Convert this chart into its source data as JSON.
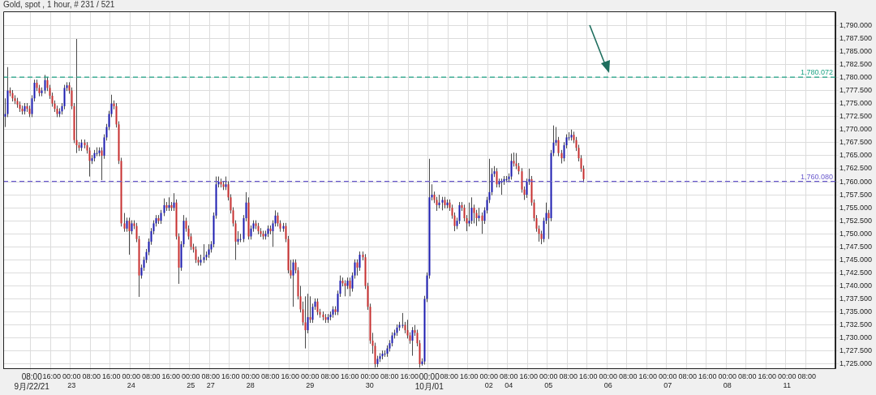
{
  "chart_data": {
    "type": "candlestick",
    "title": "Gold, spot , 1 hour, # 231 / 521",
    "categories": [
      null,
      null,
      null,
      null,
      null,
      null,
      null,
      null,
      null,
      null,
      null,
      "08:00\n9月/22/21",
      null,
      null,
      null,
      null,
      null,
      null,
      null,
      "16:00",
      null,
      null,
      null,
      null,
      null,
      null,
      null,
      "00:00\n23",
      null,
      null,
      null,
      null,
      null,
      null,
      null,
      "08:00",
      null,
      null,
      null,
      null,
      null,
      null,
      null,
      "16:00",
      null,
      null,
      null,
      null,
      null,
      null,
      null,
      "00:00\n24",
      null,
      null,
      null,
      null,
      null,
      null,
      null,
      "08:00",
      null,
      null,
      null,
      null,
      null,
      null,
      null,
      "16:00",
      null,
      null,
      null,
      null,
      null,
      null,
      null,
      "00:00\n25",
      null,
      null,
      null,
      null,
      null,
      null,
      null,
      "08:00\n27",
      null,
      null,
      null,
      null,
      null,
      null,
      null,
      "16:00",
      null,
      null,
      null,
      null,
      null,
      null,
      null,
      "00:00\n28",
      null,
      null,
      null,
      null,
      null,
      null,
      null,
      "08:00",
      null,
      null,
      null,
      null,
      null,
      null,
      null,
      "16:00",
      null,
      null,
      null,
      null,
      null,
      null,
      null,
      "00:00\n29",
      null,
      null,
      null,
      null,
      null,
      null,
      null,
      "08:00",
      null,
      null,
      null,
      null,
      null,
      null,
      null,
      "16:00",
      null,
      null,
      null,
      null,
      null,
      null,
      null,
      "00:00\n30",
      null,
      null,
      null,
      null,
      null,
      null,
      null,
      "08:00",
      null,
      null,
      null,
      null,
      null,
      null,
      null,
      "16:00",
      null,
      null,
      null,
      null,
      null,
      null,
      null,
      "00:00\n10月/01",
      null,
      null,
      null,
      null,
      null,
      null,
      null,
      "08:00",
      null,
      null,
      null,
      null,
      null,
      null,
      null,
      "16:00",
      null,
      null,
      null,
      null,
      null,
      null,
      null,
      "00:00\n02",
      null,
      null,
      null,
      null,
      null,
      null,
      null,
      "08:00\n04",
      null,
      null,
      null,
      null,
      null,
      null,
      null,
      "16:00",
      null,
      null,
      null,
      null,
      null,
      null,
      null,
      "00:00\n05",
      null,
      null,
      null,
      null,
      null,
      null,
      null,
      "08:00",
      null,
      null,
      null,
      null,
      null,
      null,
      null,
      "16:00",
      null,
      null,
      null,
      null,
      null,
      null,
      null,
      "00:00\n06",
      null,
      null,
      null,
      null,
      null,
      null,
      null,
      "08:00",
      null,
      null,
      null,
      null,
      null,
      null,
      null,
      "16:00",
      null,
      null,
      null,
      null,
      null,
      null,
      null,
      "00:00\n07",
      null,
      null,
      null,
      null,
      null,
      null,
      null,
      "08:00",
      null,
      null,
      null,
      null,
      null,
      null,
      null,
      "16:00",
      null,
      null,
      null,
      null,
      null,
      null,
      null,
      "00:00\n08",
      null,
      null,
      null,
      null,
      null,
      null,
      null,
      "08:00",
      null,
      null,
      null,
      null,
      null,
      null,
      null,
      "16:00",
      null,
      null,
      null,
      null,
      null,
      null,
      null,
      "00:00\n11",
      null,
      null,
      null,
      null,
      null,
      null,
      null,
      "08:00",
      null,
      null,
      null,
      null,
      null,
      null,
      null,
      null,
      null,
      null,
      null
    ],
    "ohlc": [
      [
        1772.5,
        1776.0,
        1770.5,
        1773.0
      ],
      [
        1773.0,
        1782.0,
        1772.4,
        1777.5
      ],
      [
        1777.5,
        1778.1,
        1776.4,
        1777.0
      ],
      [
        1777.0,
        1777.6,
        1775.4,
        1776.0
      ],
      [
        1776.0,
        1776.6,
        1774.9,
        1775.5
      ],
      [
        1775.5,
        1776.1,
        1774.2,
        1774.8
      ],
      [
        1774.8,
        1775.4,
        1773.4,
        1774.0
      ],
      [
        1774.0,
        1774.6,
        1772.9,
        1773.5
      ],
      [
        1773.5,
        1775.1,
        1772.9,
        1774.5
      ],
      [
        1774.5,
        1775.1,
        1773.4,
        1774.0
      ],
      [
        1774.0,
        1774.6,
        1772.4,
        1773.0
      ],
      [
        1773.0,
        1776.6,
        1772.4,
        1776.0
      ],
      [
        1776.0,
        1779.6,
        1775.4,
        1779.0
      ],
      [
        1779.0,
        1779.6,
        1777.4,
        1778.0
      ],
      [
        1778.0,
        1778.6,
        1776.4,
        1777.0
      ],
      [
        1777.0,
        1778.1,
        1776.4,
        1777.5
      ],
      [
        1777.5,
        1780.5,
        1776.9,
        1779.5
      ],
      [
        1779.5,
        1780.1,
        1777.4,
        1778.0
      ],
      [
        1778.0,
        1778.6,
        1775.9,
        1776.5
      ],
      [
        1776.5,
        1777.1,
        1774.4,
        1775.0
      ],
      [
        1775.0,
        1775.6,
        1773.4,
        1774.0
      ],
      [
        1774.0,
        1774.6,
        1772.4,
        1773.0
      ],
      [
        1773.0,
        1774.1,
        1772.4,
        1773.5
      ],
      [
        1773.5,
        1775.1,
        1772.9,
        1774.5
      ],
      [
        1774.5,
        1778.6,
        1773.9,
        1778.0
      ],
      [
        1778.0,
        1779.1,
        1777.4,
        1778.5
      ],
      [
        1778.5,
        1779.1,
        1776.9,
        1777.5
      ],
      [
        1777.5,
        1778.1,
        1773.9,
        1774.5
      ],
      [
        1774.5,
        1775.1,
        1767.4,
        1768.0
      ],
      [
        1768.0,
        1787.4,
        1765.5,
        1767.0
      ],
      [
        1767.0,
        1767.6,
        1765.9,
        1766.5
      ],
      [
        1766.5,
        1768.1,
        1765.9,
        1767.5
      ],
      [
        1767.5,
        1768.1,
        1766.4,
        1767.0
      ],
      [
        1767.0,
        1767.6,
        1765.4,
        1766.0
      ],
      [
        1766.0,
        1766.6,
        1761.0,
        1764.0
      ],
      [
        1764.0,
        1765.1,
        1763.4,
        1764.5
      ],
      [
        1764.5,
        1766.1,
        1763.9,
        1765.5
      ],
      [
        1765.5,
        1766.6,
        1764.9,
        1765.5
      ],
      [
        1765.5,
        1766.6,
        1764.9,
        1766.0
      ],
      [
        1766.0,
        1766.6,
        1760.3,
        1765.0
      ],
      [
        1765.0,
        1769.1,
        1764.4,
        1768.5
      ],
      [
        1768.5,
        1771.1,
        1767.9,
        1770.5
      ],
      [
        1770.5,
        1773.6,
        1769.9,
        1773.0
      ],
      [
        1773.0,
        1776.7,
        1772.4,
        1775.0
      ],
      [
        1775.0,
        1775.6,
        1773.9,
        1774.5
      ],
      [
        1774.5,
        1775.1,
        1770.4,
        1771.0
      ],
      [
        1771.0,
        1771.6,
        1763.4,
        1764.0
      ],
      [
        1764.0,
        1764.6,
        1751.4,
        1752.0
      ],
      [
        1752.0,
        1754.0,
        1750.4,
        1751.0
      ],
      [
        1751.0,
        1753.1,
        1750.4,
        1752.5
      ],
      [
        1752.5,
        1753.1,
        1746.0,
        1750.5
      ],
      [
        1750.5,
        1752.6,
        1749.9,
        1752.0
      ],
      [
        1752.0,
        1752.6,
        1750.9,
        1751.5
      ],
      [
        1751.5,
        1752.1,
        1748.4,
        1749.0
      ],
      [
        1749.0,
        1749.6,
        1737.9,
        1742.0
      ],
      [
        1742.0,
        1744.1,
        1741.4,
        1743.5
      ],
      [
        1743.5,
        1745.6,
        1742.9,
        1745.0
      ],
      [
        1745.0,
        1747.1,
        1744.4,
        1746.5
      ],
      [
        1746.5,
        1749.1,
        1745.9,
        1748.5
      ],
      [
        1748.5,
        1751.1,
        1747.9,
        1750.5
      ],
      [
        1750.5,
        1752.6,
        1749.9,
        1752.0
      ],
      [
        1752.0,
        1753.6,
        1751.4,
        1753.0
      ],
      [
        1753.0,
        1753.6,
        1751.9,
        1752.5
      ],
      [
        1752.5,
        1754.6,
        1751.9,
        1754.0
      ],
      [
        1754.0,
        1756.8,
        1753.4,
        1755.5
      ],
      [
        1755.5,
        1756.1,
        1754.4,
        1755.0
      ],
      [
        1755.0,
        1757.0,
        1754.4,
        1755.5
      ],
      [
        1755.5,
        1756.1,
        1754.4,
        1755.0
      ],
      [
        1755.0,
        1757.8,
        1754.4,
        1756.0
      ],
      [
        1756.0,
        1756.6,
        1748.9,
        1749.5
      ],
      [
        1749.5,
        1750.1,
        1740.4,
        1743.5
      ],
      [
        1743.5,
        1748.6,
        1742.9,
        1748.0
      ],
      [
        1748.0,
        1753.6,
        1747.4,
        1752.5
      ],
      [
        1752.5,
        1753.1,
        1750.4,
        1751.0
      ],
      [
        1751.0,
        1751.6,
        1748.9,
        1749.5
      ],
      [
        1749.5,
        1750.1,
        1746.9,
        1747.5
      ],
      [
        1747.5,
        1748.1,
        1746.4,
        1747.0
      ],
      [
        1747.0,
        1747.6,
        1744.4,
        1745.0
      ],
      [
        1745.0,
        1745.6,
        1743.9,
        1744.5
      ],
      [
        1744.5,
        1746.0,
        1743.9,
        1745.0
      ],
      [
        1745.0,
        1748.0,
        1744.4,
        1745.5
      ],
      [
        1745.5,
        1746.6,
        1744.9,
        1746.0
      ],
      [
        1746.0,
        1748.0,
        1745.4,
        1747.0
      ],
      [
        1747.0,
        1748.6,
        1746.4,
        1748.0
      ],
      [
        1748.0,
        1754.1,
        1747.4,
        1753.5
      ],
      [
        1753.5,
        1761.0,
        1752.9,
        1759.5
      ],
      [
        1759.5,
        1761.0,
        1758.9,
        1760.0
      ],
      [
        1760.0,
        1760.6,
        1758.9,
        1759.5
      ],
      [
        1759.5,
        1760.1,
        1758.4,
        1759.0
      ],
      [
        1759.0,
        1761.0,
        1758.4,
        1759.5
      ],
      [
        1759.5,
        1760.1,
        1756.4,
        1757.0
      ],
      [
        1757.0,
        1757.6,
        1753.9,
        1754.5
      ],
      [
        1754.5,
        1755.1,
        1751.4,
        1752.0
      ],
      [
        1752.0,
        1752.6,
        1745.0,
        1748.5
      ],
      [
        1748.5,
        1750.5,
        1747.9,
        1749.0
      ],
      [
        1749.0,
        1750.0,
        1748.4,
        1749.0
      ],
      [
        1749.0,
        1753.6,
        1748.4,
        1753.0
      ],
      [
        1753.0,
        1758.0,
        1752.4,
        1756.0
      ],
      [
        1756.0,
        1757.0,
        1748.9,
        1749.5
      ],
      [
        1749.5,
        1751.6,
        1748.9,
        1751.0
      ],
      [
        1751.0,
        1752.6,
        1750.4,
        1752.0
      ],
      [
        1752.0,
        1752.6,
        1750.9,
        1751.5
      ],
      [
        1751.5,
        1752.1,
        1749.9,
        1750.5
      ],
      [
        1750.5,
        1751.1,
        1749.4,
        1750.0
      ],
      [
        1750.0,
        1750.6,
        1748.9,
        1749.5
      ],
      [
        1749.5,
        1750.6,
        1748.9,
        1750.0
      ],
      [
        1750.0,
        1751.6,
        1749.4,
        1751.0
      ],
      [
        1751.0,
        1751.6,
        1749.9,
        1750.5
      ],
      [
        1750.5,
        1752.6,
        1747.5,
        1752.0
      ],
      [
        1752.0,
        1754.5,
        1751.4,
        1753.5
      ],
      [
        1753.5,
        1754.1,
        1751.4,
        1752.0
      ],
      [
        1752.0,
        1752.6,
        1750.4,
        1751.0
      ],
      [
        1751.0,
        1752.1,
        1750.4,
        1751.5
      ],
      [
        1751.5,
        1752.1,
        1748.4,
        1749.0
      ],
      [
        1749.0,
        1749.6,
        1742.4,
        1743.0
      ],
      [
        1743.0,
        1745.0,
        1741.4,
        1742.0
      ],
      [
        1742.0,
        1745.1,
        1736.0,
        1744.5
      ],
      [
        1744.5,
        1745.1,
        1742.4,
        1743.0
      ],
      [
        1743.0,
        1743.6,
        1737.4,
        1738.0
      ],
      [
        1738.0,
        1740.0,
        1734.9,
        1735.5
      ],
      [
        1735.5,
        1737.0,
        1732.4,
        1733.0
      ],
      [
        1733.0,
        1738.0,
        1728.0,
        1731.5
      ],
      [
        1731.5,
        1738.5,
        1730.9,
        1734.0
      ],
      [
        1734.0,
        1738.0,
        1732.9,
        1733.5
      ],
      [
        1733.5,
        1736.6,
        1732.9,
        1736.0
      ],
      [
        1736.0,
        1737.6,
        1735.4,
        1737.0
      ],
      [
        1737.0,
        1737.6,
        1734.4,
        1735.0
      ],
      [
        1735.0,
        1735.6,
        1733.9,
        1734.5
      ],
      [
        1734.5,
        1735.1,
        1733.4,
        1734.0
      ],
      [
        1734.0,
        1734.6,
        1732.9,
        1733.5
      ],
      [
        1733.5,
        1734.6,
        1732.9,
        1734.0
      ],
      [
        1734.0,
        1735.1,
        1733.4,
        1734.5
      ],
      [
        1734.5,
        1736.1,
        1733.9,
        1735.5
      ],
      [
        1735.5,
        1736.1,
        1734.4,
        1735.0
      ],
      [
        1735.0,
        1739.1,
        1734.4,
        1738.5
      ],
      [
        1738.5,
        1742.0,
        1737.9,
        1741.0
      ],
      [
        1741.0,
        1741.6,
        1739.9,
        1740.5
      ],
      [
        1740.5,
        1741.1,
        1738.0,
        1740.0
      ],
      [
        1740.0,
        1741.6,
        1739.4,
        1741.0
      ],
      [
        1741.0,
        1741.6,
        1738.0,
        1739.5
      ],
      [
        1739.5,
        1742.6,
        1738.9,
        1742.0
      ],
      [
        1742.0,
        1745.1,
        1741.4,
        1744.5
      ],
      [
        1744.5,
        1745.1,
        1742.0,
        1743.5
      ],
      [
        1743.5,
        1746.6,
        1742.9,
        1746.0
      ],
      [
        1746.0,
        1746.6,
        1744.9,
        1745.5
      ],
      [
        1745.5,
        1746.1,
        1739.4,
        1740.0
      ],
      [
        1740.0,
        1740.6,
        1735.4,
        1736.0
      ],
      [
        1736.0,
        1736.6,
        1728.9,
        1729.5
      ],
      [
        1729.5,
        1731.0,
        1727.0,
        1728.5
      ],
      [
        1728.5,
        1729.1,
        1724.3,
        1725.0
      ],
      [
        1725.0,
        1726.6,
        1724.4,
        1726.0
      ],
      [
        1726.0,
        1727.1,
        1725.4,
        1726.5
      ],
      [
        1726.5,
        1727.6,
        1725.9,
        1727.0
      ],
      [
        1727.0,
        1727.6,
        1726.4,
        1727.0
      ],
      [
        1727.0,
        1728.6,
        1726.4,
        1728.0
      ],
      [
        1728.0,
        1729.6,
        1727.4,
        1729.0
      ],
      [
        1729.0,
        1731.1,
        1728.4,
        1730.5
      ],
      [
        1730.5,
        1731.6,
        1729.9,
        1731.0
      ],
      [
        1731.0,
        1732.6,
        1730.4,
        1732.0
      ],
      [
        1732.0,
        1733.1,
        1731.4,
        1732.5
      ],
      [
        1732.5,
        1734.8,
        1731.9,
        1732.5
      ],
      [
        1732.5,
        1733.1,
        1730.9,
        1731.5
      ],
      [
        1731.5,
        1733.5,
        1729.9,
        1730.5
      ],
      [
        1730.5,
        1731.1,
        1728.9,
        1729.5
      ],
      [
        1729.5,
        1732.1,
        1726.6,
        1731.5
      ],
      [
        1731.5,
        1732.5,
        1730.4,
        1731.0
      ],
      [
        1731.0,
        1731.6,
        1728.4,
        1729.0
      ],
      [
        1729.0,
        1729.6,
        1724.3,
        1725.0
      ],
      [
        1725.0,
        1726.1,
        1724.7,
        1725.5
      ],
      [
        1725.5,
        1738.1,
        1724.9,
        1737.5
      ],
      [
        1737.5,
        1742.6,
        1736.9,
        1742.0
      ],
      [
        1742.0,
        1764.4,
        1741.4,
        1757.0
      ],
      [
        1757.0,
        1759.5,
        1756.4,
        1757.5
      ],
      [
        1757.5,
        1758.1,
        1755.9,
        1756.5
      ],
      [
        1756.5,
        1757.1,
        1754.4,
        1755.5
      ],
      [
        1755.5,
        1757.5,
        1754.9,
        1756.0
      ],
      [
        1756.0,
        1757.1,
        1754.5,
        1756.5
      ],
      [
        1756.5,
        1757.1,
        1754.9,
        1755.5
      ],
      [
        1755.5,
        1756.6,
        1754.9,
        1756.0
      ],
      [
        1756.0,
        1756.6,
        1754.4,
        1755.0
      ],
      [
        1755.0,
        1755.6,
        1752.9,
        1753.5
      ],
      [
        1753.5,
        1754.1,
        1750.5,
        1751.5
      ],
      [
        1751.5,
        1753.1,
        1750.9,
        1752.5
      ],
      [
        1752.5,
        1756.1,
        1751.9,
        1755.5
      ],
      [
        1755.5,
        1756.1,
        1754.4,
        1755.0
      ],
      [
        1755.0,
        1755.6,
        1752.4,
        1753.0
      ],
      [
        1753.0,
        1753.6,
        1750.5,
        1752.0
      ],
      [
        1752.0,
        1756.0,
        1751.4,
        1752.5
      ],
      [
        1752.5,
        1757.0,
        1751.9,
        1755.0
      ],
      [
        1755.0,
        1755.6,
        1752.0,
        1754.0
      ],
      [
        1754.0,
        1754.6,
        1751.5,
        1753.0
      ],
      [
        1753.0,
        1755.0,
        1752.4,
        1753.5
      ],
      [
        1753.5,
        1754.1,
        1750.0,
        1752.5
      ],
      [
        1752.5,
        1755.1,
        1751.9,
        1754.5
      ],
      [
        1754.5,
        1757.1,
        1753.9,
        1756.5
      ],
      [
        1756.5,
        1764.4,
        1755.9,
        1758.0
      ],
      [
        1758.0,
        1762.6,
        1757.4,
        1761.5
      ],
      [
        1761.5,
        1763.0,
        1760.9,
        1762.0
      ],
      [
        1762.0,
        1762.6,
        1758.9,
        1759.5
      ],
      [
        1759.5,
        1760.6,
        1758.9,
        1760.0
      ],
      [
        1760.0,
        1760.6,
        1757.5,
        1760.0
      ],
      [
        1760.0,
        1761.1,
        1759.4,
        1760.5
      ],
      [
        1760.5,
        1761.1,
        1759.9,
        1760.5
      ],
      [
        1760.5,
        1761.6,
        1759.9,
        1761.0
      ],
      [
        1761.0,
        1765.4,
        1760.4,
        1764.0
      ],
      [
        1764.0,
        1765.6,
        1762.9,
        1763.5
      ],
      [
        1763.5,
        1765.5,
        1762.4,
        1763.0
      ],
      [
        1763.0,
        1763.6,
        1761.4,
        1762.0
      ],
      [
        1762.0,
        1762.6,
        1757.9,
        1758.5
      ],
      [
        1758.5,
        1759.1,
        1756.5,
        1757.5
      ],
      [
        1757.5,
        1760.6,
        1756.9,
        1760.0
      ],
      [
        1760.0,
        1762.5,
        1759.4,
        1760.5
      ],
      [
        1760.5,
        1761.1,
        1755.4,
        1756.0
      ],
      [
        1756.0,
        1756.6,
        1752.4,
        1753.0
      ],
      [
        1753.0,
        1753.6,
        1750.4,
        1751.0
      ],
      [
        1751.0,
        1751.6,
        1748.5,
        1750.0
      ],
      [
        1750.0,
        1750.6,
        1748.0,
        1749.0
      ],
      [
        1749.0,
        1753.1,
        1748.4,
        1752.5
      ],
      [
        1752.5,
        1756.0,
        1751.9,
        1754.0
      ],
      [
        1754.0,
        1754.6,
        1749.0,
        1753.0
      ],
      [
        1753.0,
        1766.1,
        1752.4,
        1765.5
      ],
      [
        1765.5,
        1770.8,
        1764.9,
        1767.5
      ],
      [
        1767.5,
        1770.5,
        1766.9,
        1768.0
      ],
      [
        1768.0,
        1768.6,
        1764.9,
        1765.5
      ],
      [
        1765.5,
        1766.1,
        1763.5,
        1764.5
      ],
      [
        1764.5,
        1767.6,
        1763.9,
        1767.0
      ],
      [
        1767.0,
        1769.1,
        1766.4,
        1768.5
      ],
      [
        1768.5,
        1769.5,
        1767.9,
        1768.5
      ],
      [
        1768.5,
        1770.0,
        1767.9,
        1769.0
      ],
      [
        1769.0,
        1769.6,
        1767.4,
        1768.0
      ],
      [
        1768.0,
        1768.6,
        1765.9,
        1766.5
      ],
      [
        1766.5,
        1767.1,
        1763.9,
        1764.5
      ],
      [
        1764.5,
        1765.1,
        1761.9,
        1762.5
      ],
      [
        1762.5,
        1763.1,
        1759.9,
        1760.5
      ],
      null,
      null,
      null,
      null,
      null,
      null,
      null,
      null,
      null,
      null,
      null,
      null,
      null,
      null,
      null,
      null,
      null,
      null,
      null,
      null,
      null,
      null,
      null,
      null,
      null,
      null,
      null,
      null,
      null,
      null,
      null,
      null,
      null,
      null,
      null,
      null,
      null,
      null,
      null,
      null,
      null,
      null,
      null,
      null,
      null,
      null,
      null,
      null,
      null,
      null,
      null,
      null,
      null,
      null,
      null,
      null,
      null,
      null,
      null,
      null,
      null,
      null,
      null,
      null,
      null,
      null,
      null,
      null,
      null,
      null,
      null,
      null,
      null,
      null,
      null,
      null,
      null,
      null,
      null,
      null,
      null,
      null,
      null,
      null,
      null,
      null,
      null,
      null,
      null,
      null,
      null,
      null,
      null,
      null,
      null,
      null,
      null,
      null,
      null,
      null,
      null
    ],
    "ylim": [
      1724.2,
      1792.7
    ],
    "yticks": [
      {
        "value": 1725,
        "label": "1,725.000"
      },
      {
        "value": 1727.5,
        "label": "1,727.500"
      },
      {
        "value": 1730,
        "label": "1,730.000"
      },
      {
        "value": 1732.5,
        "label": "1,732.500"
      },
      {
        "value": 1735,
        "label": "1,735.000"
      },
      {
        "value": 1737.5,
        "label": "1,737.500"
      },
      {
        "value": 1740,
        "label": "1,740.000"
      },
      {
        "value": 1742.5,
        "label": "1,742.500"
      },
      {
        "value": 1745,
        "label": "1,745.000"
      },
      {
        "value": 1747.5,
        "label": "1,747.500"
      },
      {
        "value": 1750,
        "label": "1,750.000"
      },
      {
        "value": 1752.5,
        "label": "1,752.500"
      },
      {
        "value": 1755,
        "label": "1,755.000"
      },
      {
        "value": 1757.5,
        "label": "1,757.500"
      },
      {
        "value": 1760,
        "label": "1,760.000"
      },
      {
        "value": 1762.5,
        "label": "1,762.500"
      },
      {
        "value": 1765,
        "label": "1,765.000"
      },
      {
        "value": 1767.5,
        "label": "1,767.500"
      },
      {
        "value": 1770,
        "label": "1,770.000"
      },
      {
        "value": 1772.5,
        "label": "1,772.500"
      },
      {
        "value": 1775,
        "label": "1,775.000"
      },
      {
        "value": 1777.5,
        "label": "1,777.500"
      },
      {
        "value": 1780,
        "label": "1,780.000"
      },
      {
        "value": 1782.5,
        "label": "1,782.500"
      },
      {
        "value": 1785,
        "label": "1,785.000"
      },
      {
        "value": 1787.5,
        "label": "1,787.500"
      },
      {
        "value": 1790,
        "label": "1,790.000"
      }
    ],
    "ref_lines": [
      {
        "axis": "y",
        "value": 1780.072,
        "label": "1,780.072",
        "color": "#1fa385",
        "line_style": "dashed"
      },
      {
        "axis": "y",
        "value": 1760.08,
        "label": "1,760.080",
        "color": "#6a5acd",
        "line_style": "dashed"
      }
    ],
    "grid": true
  }
}
